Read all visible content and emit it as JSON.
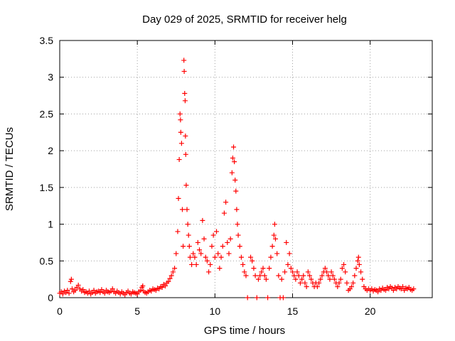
{
  "chart_data": {
    "type": "scatter",
    "title": "Day 029 of 2025, SRMTID for receiver helg",
    "xlabel": "GPS time / hours",
    "ylabel": "SRMTID / TECUs",
    "xlim": [
      0,
      24
    ],
    "ylim": [
      0,
      3.5
    ],
    "xticks": [
      0,
      5,
      10,
      15,
      20
    ],
    "yticks": [
      0,
      0.5,
      1,
      1.5,
      2,
      2.5,
      3,
      3.5
    ],
    "xtick_labels": [
      "0",
      "5",
      "10",
      "15",
      "20"
    ],
    "ytick_labels": [
      "0",
      "0.5",
      "1",
      "1.5",
      "2",
      "2.5",
      "3",
      "3.5"
    ],
    "grid": true,
    "marker": "+",
    "series": [
      {
        "name": "SRMTID",
        "color": "#ff0000",
        "points": [
          [
            0.0,
            0.06
          ],
          [
            0.1,
            0.08
          ],
          [
            0.2,
            0.05
          ],
          [
            0.3,
            0.09
          ],
          [
            0.4,
            0.07
          ],
          [
            0.5,
            0.1
          ],
          [
            0.6,
            0.06
          ],
          [
            0.7,
            0.22
          ],
          [
            0.75,
            0.25
          ],
          [
            0.8,
            0.12
          ],
          [
            0.9,
            0.08
          ],
          [
            1.0,
            0.1
          ],
          [
            1.1,
            0.14
          ],
          [
            1.2,
            0.17
          ],
          [
            1.3,
            0.12
          ],
          [
            1.4,
            0.09
          ],
          [
            1.5,
            0.11
          ],
          [
            1.6,
            0.07
          ],
          [
            1.7,
            0.08
          ],
          [
            1.8,
            0.06
          ],
          [
            1.9,
            0.09
          ],
          [
            2.0,
            0.05
          ],
          [
            2.1,
            0.07
          ],
          [
            2.2,
            0.1
          ],
          [
            2.3,
            0.06
          ],
          [
            2.4,
            0.08
          ],
          [
            2.5,
            0.09
          ],
          [
            2.6,
            0.07
          ],
          [
            2.7,
            0.11
          ],
          [
            2.8,
            0.08
          ],
          [
            2.9,
            0.06
          ],
          [
            3.0,
            0.1
          ],
          [
            3.1,
            0.08
          ],
          [
            3.2,
            0.07
          ],
          [
            3.3,
            0.09
          ],
          [
            3.4,
            0.12
          ],
          [
            3.5,
            0.08
          ],
          [
            3.6,
            0.06
          ],
          [
            3.7,
            0.09
          ],
          [
            3.8,
            0.07
          ],
          [
            3.9,
            0.05
          ],
          [
            4.0,
            0.08
          ],
          [
            4.1,
            0.06
          ],
          [
            4.2,
            0.04
          ],
          [
            4.3,
            0.07
          ],
          [
            4.4,
            0.09
          ],
          [
            4.5,
            0.06
          ],
          [
            4.6,
            0.05
          ],
          [
            4.7,
            0.08
          ],
          [
            4.8,
            0.07
          ],
          [
            4.9,
            0.06
          ],
          [
            5.0,
            0.05
          ],
          [
            5.1,
            0.08
          ],
          [
            5.2,
            0.1
          ],
          [
            5.3,
            0.14
          ],
          [
            5.35,
            0.16
          ],
          [
            5.4,
            0.09
          ],
          [
            5.5,
            0.07
          ],
          [
            5.6,
            0.06
          ],
          [
            5.7,
            0.08
          ],
          [
            5.8,
            0.1
          ],
          [
            5.9,
            0.09
          ],
          [
            6.0,
            0.12
          ],
          [
            6.1,
            0.11
          ],
          [
            6.2,
            0.1
          ],
          [
            6.3,
            0.13
          ],
          [
            6.4,
            0.12
          ],
          [
            6.5,
            0.15
          ],
          [
            6.6,
            0.14
          ],
          [
            6.7,
            0.18
          ],
          [
            6.8,
            0.16
          ],
          [
            6.9,
            0.2
          ],
          [
            7.0,
            0.22
          ],
          [
            7.1,
            0.26
          ],
          [
            7.2,
            0.3
          ],
          [
            7.3,
            0.35
          ],
          [
            7.4,
            0.4
          ],
          [
            7.5,
            0.6
          ],
          [
            7.6,
            0.9
          ],
          [
            7.65,
            1.35
          ],
          [
            7.7,
            1.88
          ],
          [
            7.75,
            2.5
          ],
          [
            7.78,
            2.42
          ],
          [
            7.8,
            2.25
          ],
          [
            7.85,
            2.1
          ],
          [
            7.9,
            1.2
          ],
          [
            7.95,
            0.7
          ],
          [
            8.0,
            3.23
          ],
          [
            8.02,
            3.08
          ],
          [
            8.05,
            2.78
          ],
          [
            8.08,
            2.68
          ],
          [
            8.1,
            2.2
          ],
          [
            8.12,
            1.95
          ],
          [
            8.15,
            1.53
          ],
          [
            8.2,
            1.2
          ],
          [
            8.25,
            1.0
          ],
          [
            8.3,
            0.85
          ],
          [
            8.35,
            0.7
          ],
          [
            8.4,
            0.55
          ],
          [
            8.5,
            0.45
          ],
          [
            8.6,
            0.6
          ],
          [
            8.7,
            0.55
          ],
          [
            8.8,
            0.45
          ],
          [
            8.9,
            0.75
          ],
          [
            9.0,
            0.65
          ],
          [
            9.1,
            0.6
          ],
          [
            9.2,
            1.05
          ],
          [
            9.3,
            0.8
          ],
          [
            9.4,
            0.55
          ],
          [
            9.5,
            0.5
          ],
          [
            9.6,
            0.35
          ],
          [
            9.7,
            0.45
          ],
          [
            9.8,
            0.7
          ],
          [
            9.9,
            0.85
          ],
          [
            10.0,
            0.55
          ],
          [
            10.1,
            0.9
          ],
          [
            10.2,
            0.6
          ],
          [
            10.3,
            0.4
          ],
          [
            10.4,
            0.55
          ],
          [
            10.5,
            0.7
          ],
          [
            10.6,
            1.15
          ],
          [
            10.7,
            1.3
          ],
          [
            10.8,
            0.75
          ],
          [
            10.9,
            0.6
          ],
          [
            11.0,
            0.8
          ],
          [
            11.1,
            1.7
          ],
          [
            11.15,
            1.9
          ],
          [
            11.2,
            2.05
          ],
          [
            11.25,
            1.85
          ],
          [
            11.3,
            1.6
          ],
          [
            11.35,
            1.45
          ],
          [
            11.4,
            1.2
          ],
          [
            11.45,
            1.0
          ],
          [
            11.5,
            0.85
          ],
          [
            11.6,
            0.7
          ],
          [
            11.7,
            0.55
          ],
          [
            11.8,
            0.45
          ],
          [
            11.9,
            0.35
          ],
          [
            12.0,
            0.3
          ],
          [
            12.1,
            0.0
          ],
          [
            12.3,
            0.55
          ],
          [
            12.4,
            0.5
          ],
          [
            12.5,
            0.4
          ],
          [
            12.6,
            0.3
          ],
          [
            12.7,
            0.0
          ],
          [
            12.8,
            0.25
          ],
          [
            12.9,
            0.3
          ],
          [
            13.0,
            0.35
          ],
          [
            13.1,
            0.4
          ],
          [
            13.2,
            0.3
          ],
          [
            13.3,
            0.25
          ],
          [
            13.4,
            0.0
          ],
          [
            13.5,
            0.4
          ],
          [
            13.6,
            0.55
          ],
          [
            13.7,
            0.7
          ],
          [
            13.8,
            0.85
          ],
          [
            13.85,
            1.0
          ],
          [
            13.9,
            0.8
          ],
          [
            14.0,
            0.6
          ],
          [
            14.1,
            0.3
          ],
          [
            14.2,
            0.0
          ],
          [
            14.3,
            0.25
          ],
          [
            14.4,
            0.0
          ],
          [
            14.5,
            0.35
          ],
          [
            14.6,
            0.75
          ],
          [
            14.7,
            0.45
          ],
          [
            14.8,
            0.6
          ],
          [
            14.9,
            0.4
          ],
          [
            15.0,
            0.35
          ],
          [
            15.1,
            0.3
          ],
          [
            15.2,
            0.25
          ],
          [
            15.3,
            0.35
          ],
          [
            15.4,
            0.3
          ],
          [
            15.5,
            0.2
          ],
          [
            15.6,
            0.25
          ],
          [
            15.7,
            0.3
          ],
          [
            15.8,
            0.2
          ],
          [
            15.9,
            0.15
          ],
          [
            16.0,
            0.35
          ],
          [
            16.1,
            0.3
          ],
          [
            16.2,
            0.25
          ],
          [
            16.3,
            0.2
          ],
          [
            16.4,
            0.15
          ],
          [
            16.5,
            0.2
          ],
          [
            16.6,
            0.15
          ],
          [
            16.7,
            0.2
          ],
          [
            16.8,
            0.25
          ],
          [
            16.9,
            0.3
          ],
          [
            17.0,
            0.35
          ],
          [
            17.1,
            0.4
          ],
          [
            17.2,
            0.35
          ],
          [
            17.3,
            0.3
          ],
          [
            17.4,
            0.25
          ],
          [
            17.5,
            0.35
          ],
          [
            17.6,
            0.3
          ],
          [
            17.7,
            0.25
          ],
          [
            17.8,
            0.2
          ],
          [
            17.9,
            0.15
          ],
          [
            18.0,
            0.2
          ],
          [
            18.1,
            0.25
          ],
          [
            18.2,
            0.4
          ],
          [
            18.3,
            0.45
          ],
          [
            18.4,
            0.35
          ],
          [
            18.5,
            0.2
          ],
          [
            18.6,
            0.1
          ],
          [
            18.7,
            0.12
          ],
          [
            18.8,
            0.15
          ],
          [
            18.9,
            0.2
          ],
          [
            19.0,
            0.3
          ],
          [
            19.1,
            0.4
          ],
          [
            19.2,
            0.5
          ],
          [
            19.25,
            0.55
          ],
          [
            19.3,
            0.45
          ],
          [
            19.4,
            0.35
          ],
          [
            19.5,
            0.25
          ],
          [
            19.6,
            0.15
          ],
          [
            19.7,
            0.12
          ],
          [
            19.8,
            0.1
          ],
          [
            19.9,
            0.12
          ],
          [
            20.0,
            0.1
          ],
          [
            20.1,
            0.12
          ],
          [
            20.2,
            0.09
          ],
          [
            20.3,
            0.11
          ],
          [
            20.4,
            0.1
          ],
          [
            20.5,
            0.08
          ],
          [
            20.6,
            0.12
          ],
          [
            20.7,
            0.1
          ],
          [
            20.8,
            0.13
          ],
          [
            20.9,
            0.11
          ],
          [
            21.0,
            0.1
          ],
          [
            21.1,
            0.14
          ],
          [
            21.2,
            0.12
          ],
          [
            21.3,
            0.15
          ],
          [
            21.4,
            0.13
          ],
          [
            21.5,
            0.1
          ],
          [
            21.6,
            0.14
          ],
          [
            21.7,
            0.12
          ],
          [
            21.8,
            0.15
          ],
          [
            21.9,
            0.13
          ],
          [
            22.0,
            0.12
          ],
          [
            22.1,
            0.15
          ],
          [
            22.2,
            0.1
          ],
          [
            22.3,
            0.13
          ],
          [
            22.4,
            0.12
          ],
          [
            22.5,
            0.14
          ],
          [
            22.6,
            0.11
          ],
          [
            22.7,
            0.1
          ],
          [
            22.8,
            0.12
          ]
        ]
      }
    ]
  }
}
